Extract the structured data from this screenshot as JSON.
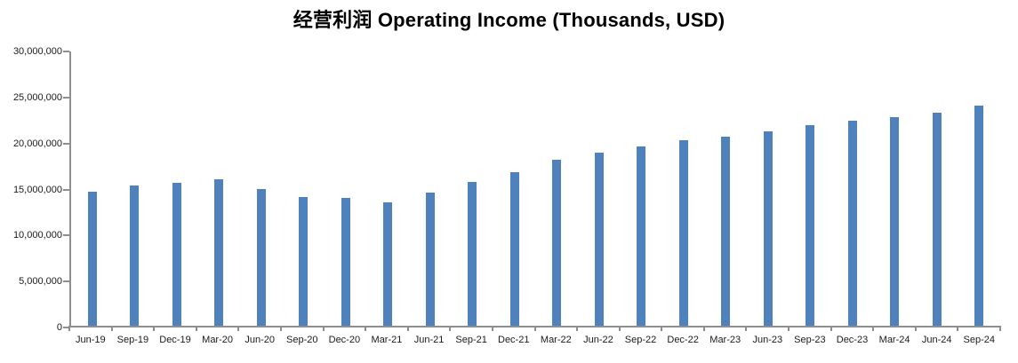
{
  "title": "经营利润 Operating Income (Thousands, USD)",
  "chart_data": {
    "type": "bar",
    "title": "经营利润 Operating Income (Thousands, USD)",
    "xlabel": "",
    "ylabel": "",
    "categories": [
      "Jun-19",
      "Sep-19",
      "Dec-19",
      "Mar-20",
      "Jun-20",
      "Sep-20",
      "Dec-20",
      "Mar-21",
      "Jun-21",
      "Sep-21",
      "Dec-21",
      "Mar-22",
      "Jun-22",
      "Sep-22",
      "Dec-22",
      "Mar-23",
      "Jun-23",
      "Sep-23",
      "Dec-23",
      "Mar-24",
      "Jun-24",
      "Sep-24"
    ],
    "values": [
      14700000,
      15350000,
      15650000,
      16000000,
      14950000,
      14050000,
      13950000,
      13500000,
      14550000,
      15750000,
      16800000,
      18150000,
      18950000,
      19600000,
      20250000,
      20650000,
      21300000,
      21950000,
      22450000,
      22850000,
      23350000,
      24100000
    ],
    "ylim": [
      0,
      30000000
    ],
    "ytick_interval": 5000000,
    "ytick_labels": [
      "0",
      "5,000,000",
      "10,000,000",
      "15,000,000",
      "20,000,000",
      "25,000,000",
      "30,000,000"
    ],
    "grid": false,
    "legend": "none",
    "bar_color": "#4F81BD",
    "axis_color": "#8e8e8e",
    "text_color": "#1a1a1a",
    "title_color": "#000000"
  }
}
